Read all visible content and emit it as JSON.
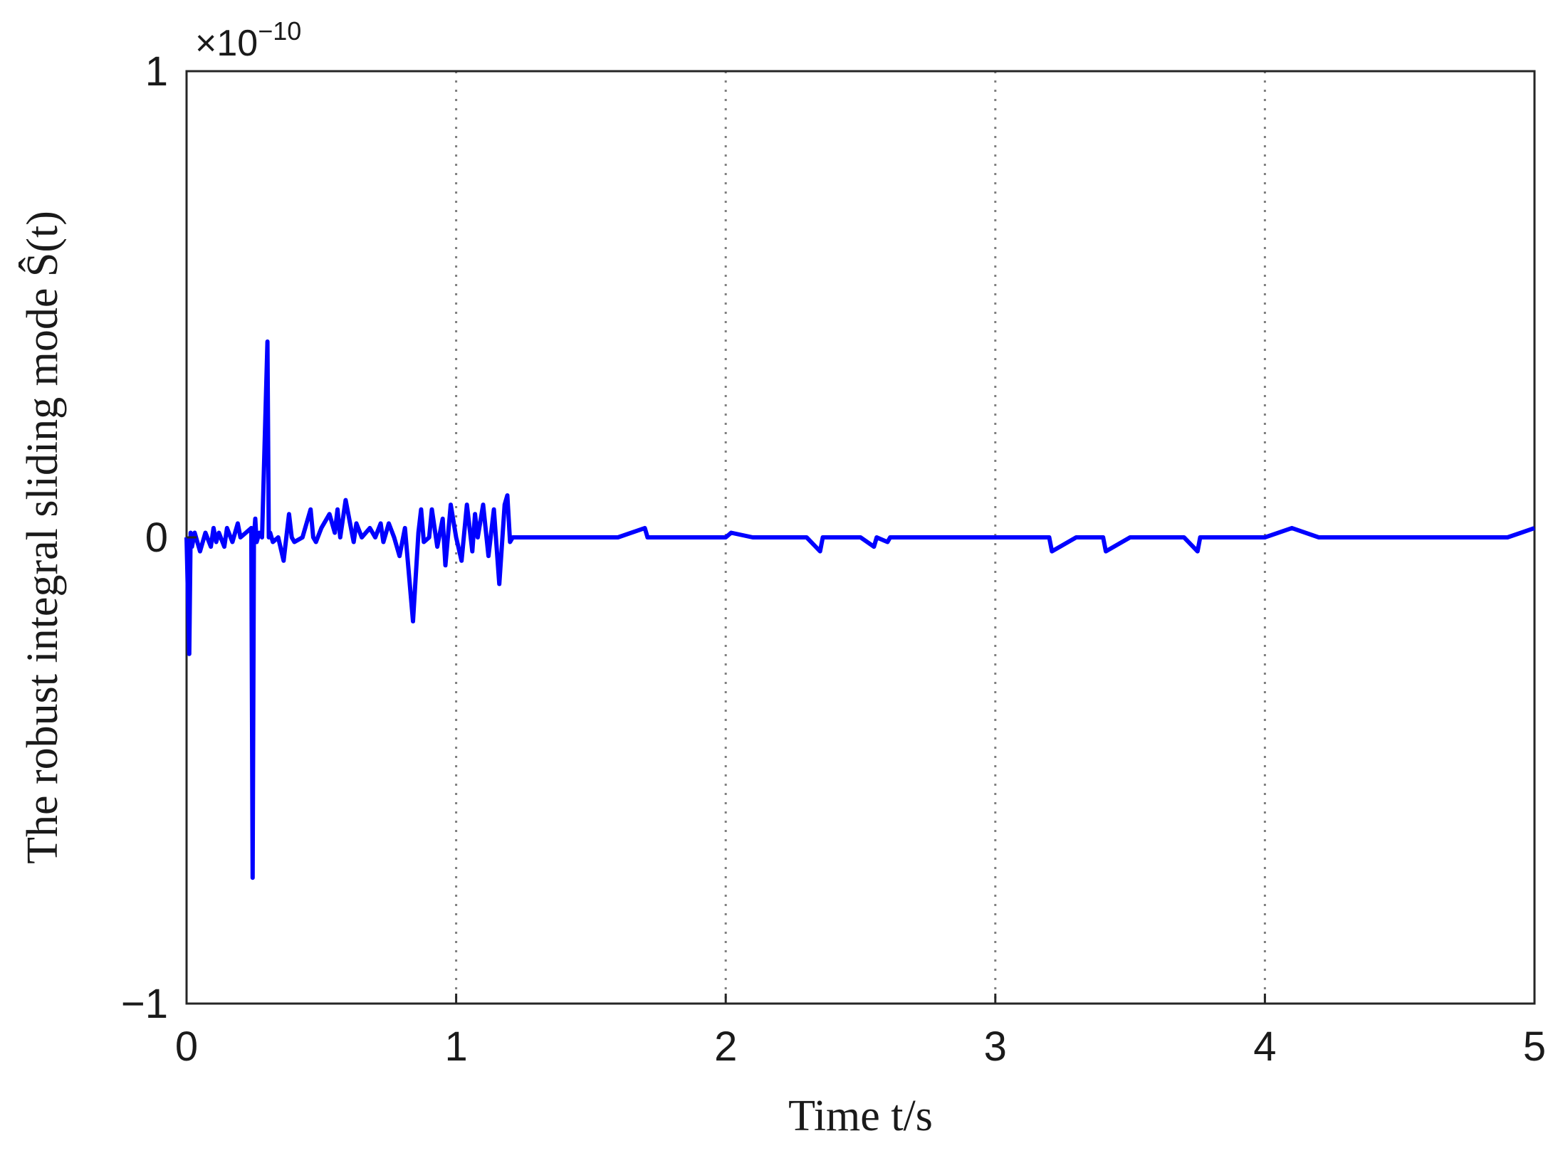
{
  "chart_data": {
    "type": "line",
    "title": "",
    "xlabel": "Time t/s",
    "ylabel": "The robust integral sliding mode Ŝ(t)",
    "y_scale_label": "×10",
    "y_scale_exponent": "−10",
    "xlim": [
      0,
      5
    ],
    "ylim": [
      -1,
      1
    ],
    "x_ticks": [
      "0",
      "1",
      "2",
      "3",
      "4",
      "5"
    ],
    "y_ticks": [
      "−1",
      "0",
      "1"
    ],
    "x_tick_values": [
      0,
      1,
      2,
      3,
      4,
      5
    ],
    "y_tick_values": [
      -1,
      0,
      1
    ],
    "grid": "vertical-dotted",
    "line_color": "#0000ff",
    "series": [
      {
        "values_note_unit": "1e-10",
        "x": [
          0,
          0.01,
          0.015,
          0.02,
          0.03,
          0.05,
          0.07,
          0.09,
          0.1,
          0.11,
          0.12,
          0.14,
          0.15,
          0.17,
          0.19,
          0.2,
          0.22,
          0.24,
          0.245,
          0.25,
          0.255,
          0.26,
          0.27,
          0.28,
          0.3,
          0.305,
          0.31,
          0.32,
          0.34,
          0.36,
          0.38,
          0.39,
          0.4,
          0.43,
          0.46,
          0.47,
          0.48,
          0.5,
          0.53,
          0.55,
          0.56,
          0.57,
          0.59,
          0.61,
          0.62,
          0.63,
          0.65,
          0.68,
          0.7,
          0.72,
          0.73,
          0.75,
          0.77,
          0.79,
          0.81,
          0.84,
          0.86,
          0.87,
          0.88,
          0.9,
          0.91,
          0.93,
          0.95,
          0.96,
          0.98,
          1.0,
          1.02,
          1.04,
          1.06,
          1.07,
          1.08,
          1.1,
          1.12,
          1.14,
          1.16,
          1.18,
          1.19,
          1.2,
          1.21,
          1.22,
          1.23,
          1.25,
          1.3,
          1.4,
          1.5,
          1.6,
          1.7,
          1.71,
          1.8,
          1.9,
          2.0,
          2.02,
          2.1,
          2.2,
          2.3,
          2.35,
          2.36,
          2.4,
          2.5,
          2.55,
          2.56,
          2.6,
          2.61,
          2.7,
          2.8,
          2.9,
          3.0,
          3.1,
          3.2,
          3.21,
          3.3,
          3.4,
          3.41,
          3.5,
          3.6,
          3.7,
          3.75,
          3.76,
          3.8,
          3.9,
          4.0,
          4.1,
          4.2,
          4.3,
          4.4,
          4.5,
          4.6,
          4.7,
          4.8,
          4.9,
          4.95,
          5.0
        ],
        "y": [
          0,
          -0.25,
          0.01,
          -0.02,
          0.01,
          -0.03,
          0.01,
          -0.02,
          0.02,
          -0.01,
          0.01,
          -0.02,
          0.02,
          -0.01,
          0.03,
          0.0,
          0.01,
          0.02,
          -0.73,
          0.0,
          0.04,
          -0.01,
          0.01,
          0.0,
          0.42,
          0.0,
          0.01,
          -0.01,
          0.0,
          -0.05,
          0.05,
          0.0,
          -0.01,
          0.0,
          0.06,
          0.0,
          -0.01,
          0.02,
          0.05,
          0.01,
          0.06,
          0.0,
          0.08,
          0.02,
          -0.01,
          0.03,
          0.0,
          0.02,
          0.0,
          0.03,
          -0.01,
          0.03,
          0.0,
          -0.04,
          0.02,
          -0.18,
          0.01,
          0.06,
          -0.01,
          0.0,
          0.06,
          -0.02,
          0.04,
          -0.06,
          0.07,
          0.0,
          -0.05,
          0.07,
          -0.03,
          0.05,
          0.0,
          0.07,
          -0.04,
          0.06,
          -0.1,
          0.07,
          0.09,
          -0.01,
          0.0,
          0.0,
          0.0,
          0.0,
          0.0,
          0.0,
          0.0,
          0.0,
          0.02,
          0.0,
          0.0,
          0.0,
          0.0,
          0.01,
          0.0,
          0.0,
          0.0,
          -0.03,
          0.0,
          0.0,
          0.0,
          -0.02,
          0.0,
          -0.01,
          0.0,
          0.0,
          0.0,
          0.0,
          0.0,
          0.0,
          0.0,
          -0.03,
          0.0,
          0.0,
          -0.03,
          0.0,
          0.0,
          0.0,
          -0.03,
          0.0,
          0.0,
          0.0,
          0.0,
          0.02,
          0.0,
          0.0,
          0.0,
          0.0,
          0.0,
          0.0,
          0.0,
          0.0,
          0.01,
          0.02
        ]
      }
    ]
  }
}
